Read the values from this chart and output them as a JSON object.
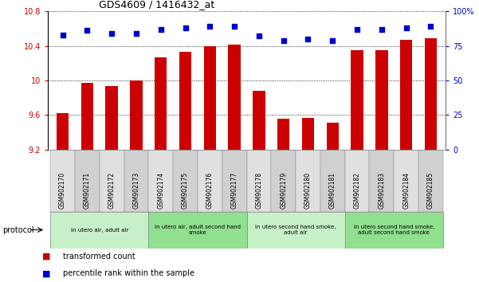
{
  "title": "GDS4609 / 1416432_at",
  "samples": [
    "GSM902170",
    "GSM902171",
    "GSM902172",
    "GSM902173",
    "GSM902174",
    "GSM902175",
    "GSM902176",
    "GSM902177",
    "GSM902178",
    "GSM902179",
    "GSM902180",
    "GSM902181",
    "GSM902182",
    "GSM902183",
    "GSM902184",
    "GSM902185"
  ],
  "transformed_count": [
    9.62,
    9.97,
    9.93,
    10.0,
    10.27,
    10.33,
    10.4,
    10.41,
    9.88,
    9.56,
    9.57,
    9.51,
    10.35,
    10.35,
    10.47,
    10.49
  ],
  "percentile_rank": [
    83,
    86,
    84,
    84,
    87,
    88,
    89,
    89,
    82,
    79,
    80,
    79,
    87,
    87,
    88,
    89
  ],
  "ylim_left": [
    9.2,
    10.8
  ],
  "ylim_right": [
    0,
    100
  ],
  "yticks_left": [
    9.2,
    9.6,
    10.0,
    10.4,
    10.8
  ],
  "ytick_labels_left": [
    "9.2",
    "9.6",
    "10",
    "10.4",
    "10.8"
  ],
  "yticks_right": [
    0,
    25,
    50,
    75,
    100
  ],
  "ytick_labels_right": [
    "0",
    "25",
    "50",
    "75",
    "100%"
  ],
  "bar_color": "#cc0000",
  "dot_color": "#0000cc",
  "bar_bottom": 9.2,
  "protocol_groups": [
    {
      "label": "in utero air, adult air",
      "start": 0,
      "end": 4,
      "color": "#c8f0c8"
    },
    {
      "label": "in utero air, adult second hand\nsmoke",
      "start": 4,
      "end": 8,
      "color": "#90e090"
    },
    {
      "label": "in utero second hand smoke,\nadult air",
      "start": 8,
      "end": 12,
      "color": "#c8f0c8"
    },
    {
      "label": "in utero second hand smoke,\nadult second hand smoke",
      "start": 12,
      "end": 16,
      "color": "#90e090"
    }
  ],
  "legend_items": [
    {
      "label": "transformed count",
      "color": "#cc0000"
    },
    {
      "label": "percentile rank within the sample",
      "color": "#0000cc"
    }
  ],
  "cell_colors": [
    "#e0e0e0",
    "#d0d0d0"
  ]
}
